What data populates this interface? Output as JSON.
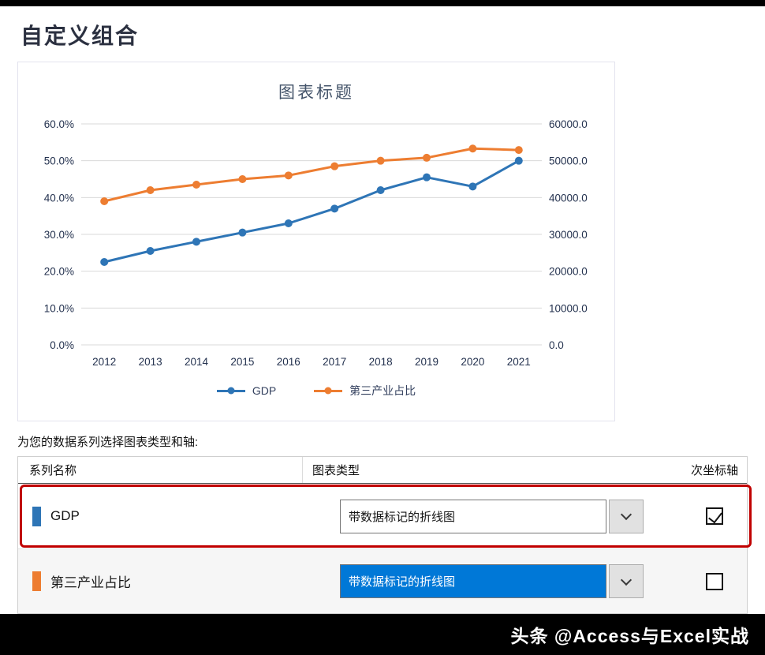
{
  "page": {
    "title": "自定义组合",
    "watermark": "头条 @Access与Excel实战"
  },
  "chart_data": {
    "type": "line",
    "title": "图表标题",
    "categories": [
      "2012",
      "2013",
      "2014",
      "2015",
      "2016",
      "2017",
      "2018",
      "2019",
      "2020",
      "2021"
    ],
    "series": [
      {
        "name": "GDP",
        "color": "#2E75B6",
        "axis": "secondary",
        "marker": "circle",
        "values": [
          22500,
          25500,
          28000,
          30500,
          33000,
          37000,
          42000,
          45500,
          43000,
          50000
        ]
      },
      {
        "name": "第三产业占比",
        "color": "#ED7D31",
        "axis": "primary",
        "marker": "circle",
        "values": [
          39.0,
          42.0,
          43.5,
          45.0,
          46.0,
          48.5,
          50.0,
          50.8,
          53.3,
          52.9
        ]
      }
    ],
    "left_axis": {
      "min": 0,
      "max": 60,
      "ticks": [
        "0.0%",
        "10.0%",
        "20.0%",
        "30.0%",
        "40.0%",
        "50.0%",
        "60.0%"
      ]
    },
    "right_axis": {
      "min": 0,
      "max": 60000,
      "ticks": [
        "0.0",
        "10000.0",
        "20000.0",
        "30000.0",
        "40000.0",
        "50000.0",
        "60000.0"
      ]
    },
    "grid": true,
    "gridline_color": "#d9d9d9",
    "legend_position": "bottom"
  },
  "series_picker": {
    "instruction": "为您的数据系列选择图表类型和轴:",
    "headers": {
      "name": "系列名称",
      "type": "图表类型",
      "secondary_axis": "次坐标轴"
    },
    "rows": [
      {
        "name": "GDP",
        "swatch_color": "#2E75B6",
        "chart_type": "带数据标记的折线图",
        "secondary_axis_checked": true,
        "selected": true
      },
      {
        "name": "第三产业占比",
        "swatch_color": "#ED7D31",
        "chart_type": "带数据标记的折线图",
        "secondary_axis_checked": false,
        "selected": false,
        "dropdown_highlighted": true
      }
    ]
  }
}
